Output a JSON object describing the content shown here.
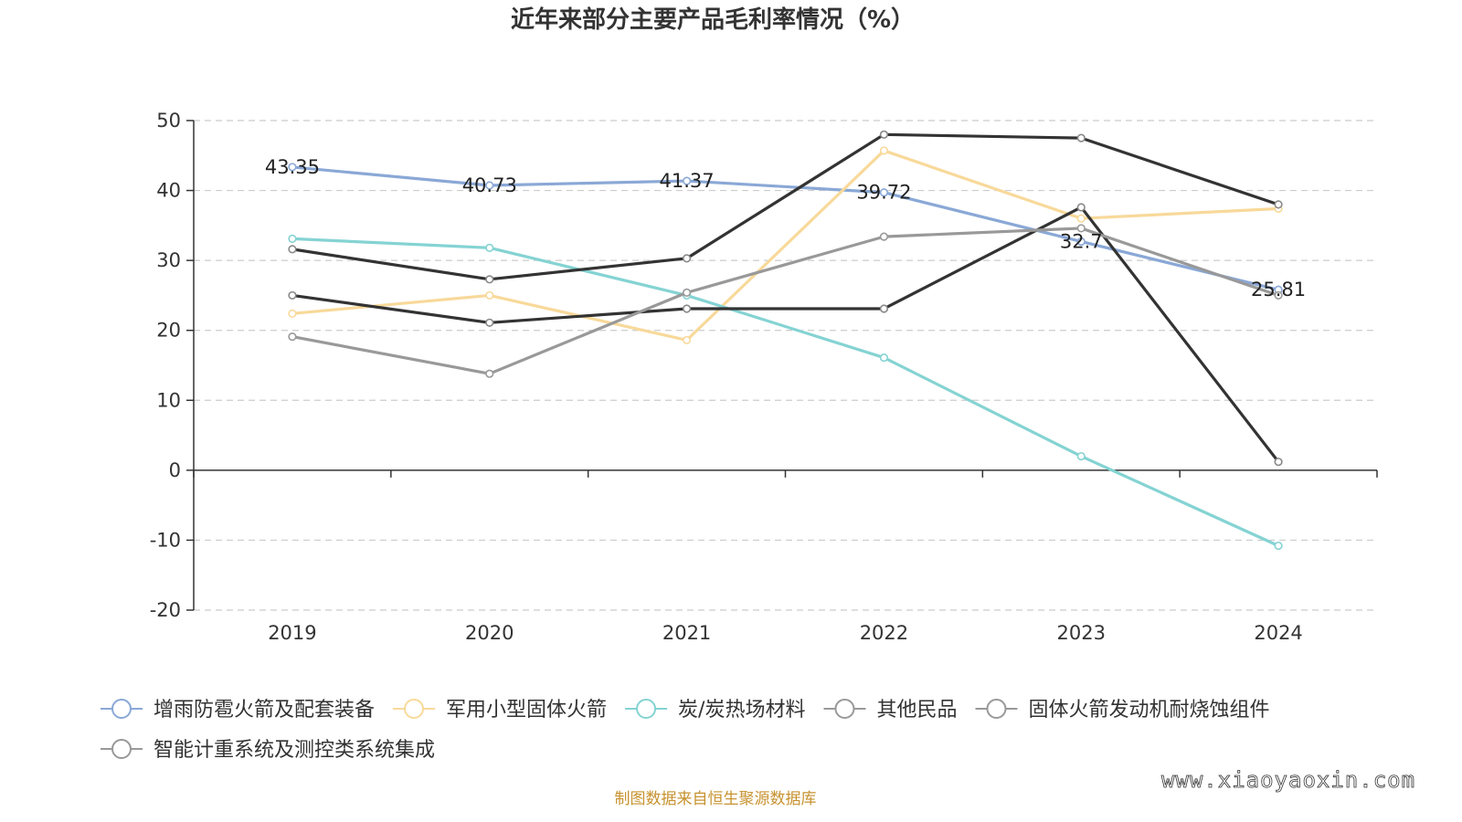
{
  "chart_data": {
    "type": "line",
    "title": "近年来部分主要产品毛利率情况（%）",
    "categories": [
      "2019",
      "2020",
      "2021",
      "2022",
      "2023",
      "2024"
    ],
    "ylim": [
      -20,
      50
    ],
    "yticks": [
      50,
      40,
      30,
      20,
      10,
      0,
      -10,
      -20
    ],
    "grid": true,
    "legend_position": "bottom-left",
    "series": [
      {
        "name": "增雨防雹火箭及配套装备",
        "color": "#8aa8d6",
        "values": [
          43.35,
          40.73,
          41.37,
          39.72,
          32.7,
          25.81
        ],
        "labels": [
          "43.35",
          "40.73",
          "41.37",
          "39.72",
          "32.7",
          "25.81"
        ]
      },
      {
        "name": "军用小型固体火箭",
        "color": "#f8d99a",
        "values": [
          22.4,
          25.0,
          18.6,
          45.7,
          36.0,
          37.4
        ]
      },
      {
        "name": "炭/炭热场材料",
        "color": "#85d3d3",
        "values": [
          33.1,
          31.8,
          25.0,
          16.1,
          2.0,
          -10.8
        ]
      },
      {
        "name": "其他民品",
        "color": "#333333",
        "values": [
          31.6,
          27.3,
          30.3,
          48.0,
          47.5,
          38.0
        ]
      },
      {
        "name": "固体火箭发动机耐烧蚀组件",
        "color": "#333333",
        "values": [
          25.0,
          21.1,
          23.1,
          23.1,
          37.6,
          1.2
        ]
      },
      {
        "name": "智能计重系统及测控类系统集成",
        "color": "#999999",
        "values": [
          19.1,
          13.8,
          25.4,
          33.4,
          34.6,
          25.0
        ]
      }
    ],
    "source": "制图数据来自恒生聚源数据库",
    "watermark": "www.xiaoyaoxin.com"
  }
}
